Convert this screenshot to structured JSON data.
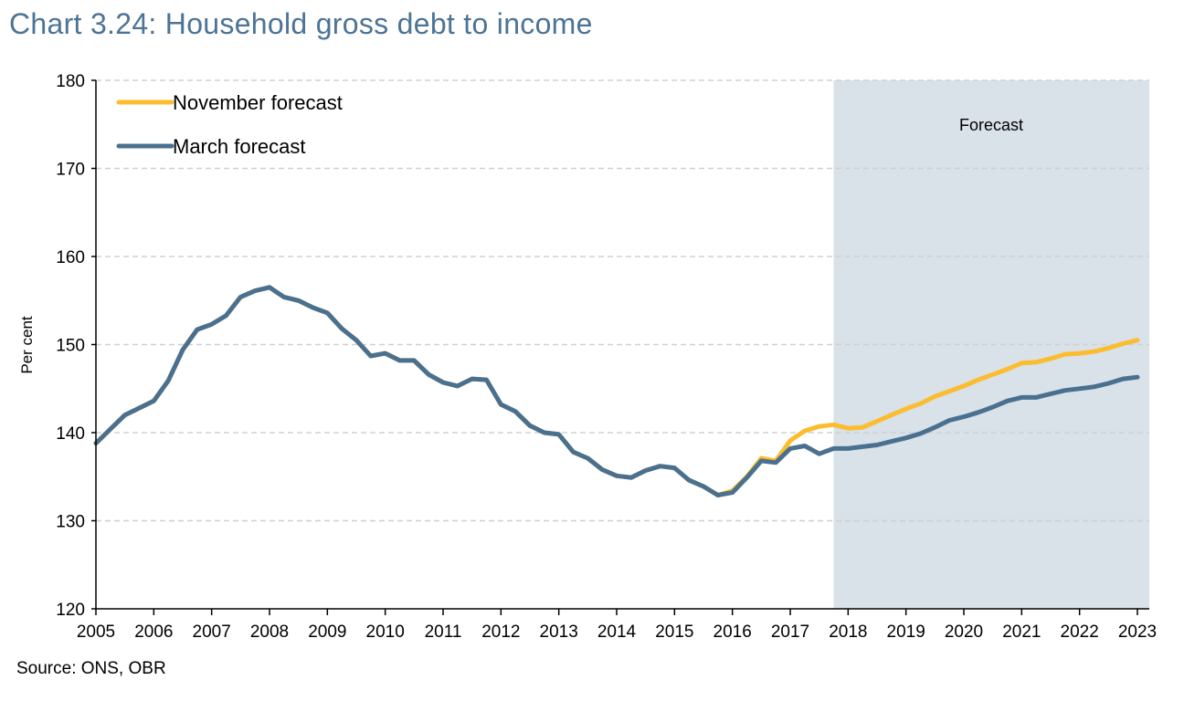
{
  "title": "Chart 3.24: Household gross debt to income",
  "source": "Source: ONS, OBR",
  "colors": {
    "title": "#4d7395",
    "november": "#fbbd2f",
    "march": "#4a7090",
    "forecast_shade": "#d9e1e9",
    "grid": "#d0d0d0"
  },
  "chart_data": {
    "type": "line",
    "title": "Chart 3.24: Household gross debt to income",
    "xlabel": "",
    "ylabel": "Per cent",
    "ylim": [
      120,
      180
    ],
    "yticks": [
      120,
      130,
      140,
      150,
      160,
      170,
      180
    ],
    "xlim": [
      2005,
      2023.2
    ],
    "xticks": [
      2005,
      2006,
      2007,
      2008,
      2009,
      2010,
      2011,
      2012,
      2013,
      2014,
      2015,
      2016,
      2017,
      2018,
      2019,
      2020,
      2021,
      2022,
      2023
    ],
    "grid": "horizontal-dashed",
    "legend_position": "top-left",
    "forecast_region": {
      "start": 2017.75,
      "end": 2023.2,
      "label": "Forecast"
    },
    "series": [
      {
        "name": "November forecast",
        "color": "#fbbd2f",
        "x": [
          2005.0,
          2005.25,
          2005.5,
          2005.75,
          2006.0,
          2006.25,
          2006.5,
          2006.75,
          2007.0,
          2007.25,
          2007.5,
          2007.75,
          2008.0,
          2008.25,
          2008.5,
          2008.75,
          2009.0,
          2009.25,
          2009.5,
          2009.75,
          2010.0,
          2010.25,
          2010.5,
          2010.75,
          2011.0,
          2011.25,
          2011.5,
          2011.75,
          2012.0,
          2012.25,
          2012.5,
          2012.75,
          2013.0,
          2013.25,
          2013.5,
          2013.75,
          2014.0,
          2014.25,
          2014.5,
          2014.75,
          2015.0,
          2015.25,
          2015.5,
          2015.75,
          2016.0,
          2016.25,
          2016.5,
          2016.75,
          2017.0,
          2017.25,
          2017.5,
          2017.75,
          2018.0,
          2018.25,
          2018.5,
          2018.75,
          2019.0,
          2019.25,
          2019.5,
          2019.75,
          2020.0,
          2020.25,
          2020.5,
          2020.75,
          2021.0,
          2021.25,
          2021.5,
          2021.75,
          2022.0,
          2022.25,
          2022.5,
          2022.75,
          2023.0
        ],
        "values": [
          138.8,
          140.4,
          142.0,
          142.8,
          143.6,
          145.9,
          149.4,
          151.7,
          152.3,
          153.3,
          155.4,
          156.1,
          156.5,
          155.4,
          155.0,
          154.2,
          153.6,
          151.8,
          150.5,
          148.7,
          149.0,
          148.2,
          148.2,
          146.6,
          145.7,
          145.3,
          146.1,
          146.0,
          143.2,
          142.4,
          140.8,
          140.0,
          139.8,
          137.8,
          137.1,
          135.8,
          135.1,
          134.9,
          135.7,
          136.2,
          136.0,
          134.6,
          133.9,
          132.9,
          133.4,
          135.0,
          137.1,
          136.8,
          139.1,
          140.2,
          140.7,
          140.9,
          140.5,
          140.6,
          141.3,
          142.0,
          142.7,
          143.3,
          144.1,
          144.7,
          145.3,
          146.0,
          146.6,
          147.2,
          147.9,
          148.0,
          148.4,
          148.9,
          149.0,
          149.2,
          149.6,
          150.1,
          150.5
        ]
      },
      {
        "name": "March forecast",
        "color": "#4a7090",
        "x": [
          2005.0,
          2005.25,
          2005.5,
          2005.75,
          2006.0,
          2006.25,
          2006.5,
          2006.75,
          2007.0,
          2007.25,
          2007.5,
          2007.75,
          2008.0,
          2008.25,
          2008.5,
          2008.75,
          2009.0,
          2009.25,
          2009.5,
          2009.75,
          2010.0,
          2010.25,
          2010.5,
          2010.75,
          2011.0,
          2011.25,
          2011.5,
          2011.75,
          2012.0,
          2012.25,
          2012.5,
          2012.75,
          2013.0,
          2013.25,
          2013.5,
          2013.75,
          2014.0,
          2014.25,
          2014.5,
          2014.75,
          2015.0,
          2015.25,
          2015.5,
          2015.75,
          2016.0,
          2016.25,
          2016.5,
          2016.75,
          2017.0,
          2017.25,
          2017.5,
          2017.75,
          2018.0,
          2018.25,
          2018.5,
          2018.75,
          2019.0,
          2019.25,
          2019.5,
          2019.75,
          2020.0,
          2020.25,
          2020.5,
          2020.75,
          2021.0,
          2021.25,
          2021.5,
          2021.75,
          2022.0,
          2022.25,
          2022.5,
          2022.75,
          2023.0
        ],
        "values": [
          138.8,
          140.4,
          142.0,
          142.8,
          143.6,
          145.9,
          149.4,
          151.7,
          152.3,
          153.3,
          155.4,
          156.1,
          156.5,
          155.4,
          155.0,
          154.2,
          153.6,
          151.8,
          150.5,
          148.7,
          149.0,
          148.2,
          148.2,
          146.6,
          145.7,
          145.3,
          146.1,
          146.0,
          143.2,
          142.4,
          140.8,
          140.0,
          139.8,
          137.8,
          137.1,
          135.8,
          135.1,
          134.9,
          135.7,
          136.2,
          136.0,
          134.6,
          133.9,
          132.9,
          133.2,
          134.9,
          136.8,
          136.6,
          138.2,
          138.5,
          137.6,
          138.2,
          138.2,
          138.4,
          138.6,
          139.0,
          139.4,
          139.9,
          140.6,
          141.4,
          141.8,
          142.3,
          142.9,
          143.6,
          144.0,
          144.0,
          144.4,
          144.8,
          145.0,
          145.2,
          145.6,
          146.1,
          146.3
        ]
      }
    ]
  }
}
